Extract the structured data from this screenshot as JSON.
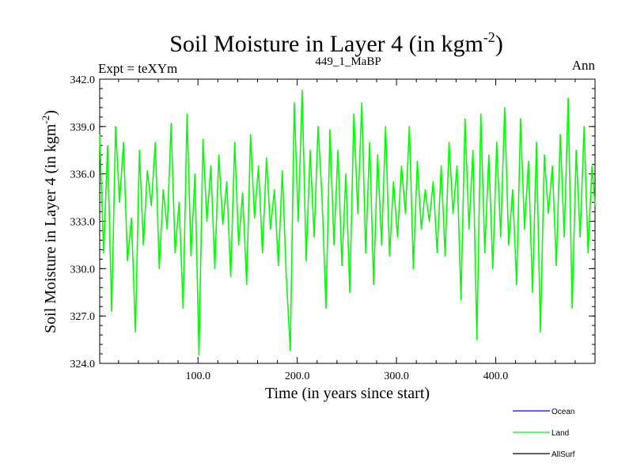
{
  "chart_data": {
    "type": "line",
    "title_main": "Soil Moisture in Layer 4 (in kgm",
    "title_sup": "-2",
    "title_close": ")",
    "left_label": "Expt = teXYm",
    "center_label": "449_1_MaBP",
    "right_label": "Ann",
    "xlabel": "Time (in years since start)",
    "ylabel_main": "Soil Moisture in Layer 4 (in kgm",
    "ylabel_sup": "-2",
    "ylabel_close": ")",
    "xlim": [
      1,
      500
    ],
    "ylim": [
      324.0,
      342.0
    ],
    "xticks": [
      100.0,
      200.0,
      300.0,
      400.0
    ],
    "xtick_labels": [
      "100.0",
      "200.0",
      "300.0",
      "400.0"
    ],
    "yticks": [
      324.0,
      327.0,
      330.0,
      333.0,
      336.0,
      339.0,
      342.0
    ],
    "ytick_labels": [
      "324.0",
      "327.0",
      "330.0",
      "333.0",
      "336.0",
      "339.0",
      "342.0"
    ],
    "legend_placement": "bottom-right, below plot",
    "legend": [
      {
        "name": "Ocean",
        "color": "#0000ff"
      },
      {
        "name": "Land",
        "color": "#00ff00"
      },
      {
        "name": "AllSurf",
        "color": "#000000"
      }
    ],
    "series": [
      {
        "name": "Land",
        "color": "#00ff00",
        "x": [
          1,
          5,
          9,
          13,
          17,
          21,
          25,
          29,
          33,
          37,
          41,
          45,
          49,
          53,
          57,
          61,
          65,
          69,
          73,
          77,
          81,
          85,
          89,
          93,
          97,
          101,
          105,
          109,
          113,
          117,
          121,
          125,
          129,
          133,
          137,
          141,
          145,
          149,
          153,
          157,
          161,
          165,
          169,
          173,
          177,
          181,
          185,
          189,
          193,
          197,
          201,
          205,
          209,
          213,
          217,
          221,
          225,
          229,
          233,
          237,
          241,
          245,
          249,
          253,
          257,
          261,
          265,
          269,
          273,
          277,
          281,
          285,
          289,
          293,
          297,
          301,
          305,
          309,
          313,
          317,
          321,
          325,
          329,
          333,
          337,
          341,
          345,
          349,
          353,
          357,
          361,
          365,
          369,
          373,
          377,
          381,
          385,
          389,
          393,
          397,
          401,
          405,
          409,
          413,
          417,
          421,
          425,
          429,
          433,
          437,
          441,
          445,
          449,
          453,
          457,
          461,
          465,
          469,
          473,
          477,
          481,
          485,
          489,
          493,
          497,
          500
        ],
        "values": [
          338.5,
          331.0,
          337.8,
          327.3,
          339.0,
          334.2,
          338.0,
          330.5,
          333.2,
          326.0,
          337.5,
          331.5,
          336.2,
          334.0,
          338.0,
          330.0,
          335.0,
          332.5,
          339.2,
          331.0,
          334.2,
          327.5,
          339.8,
          330.8,
          336.0,
          324.5,
          338.2,
          333.0,
          336.5,
          330.0,
          337.2,
          332.8,
          335.5,
          329.5,
          338.0,
          331.5,
          334.8,
          329.0,
          338.5,
          333.2,
          336.5,
          331.0,
          337.0,
          332.5,
          335.0,
          330.2,
          336.2,
          329.5,
          324.8,
          340.5,
          333.0,
          341.3,
          330.5,
          337.5,
          332.0,
          339.0,
          334.5,
          327.5,
          338.8,
          331.5,
          337.5,
          330.2,
          336.0,
          328.5,
          339.8,
          333.5,
          340.5,
          331.0,
          338.0,
          329.0,
          337.2,
          331.5,
          339.0,
          330.8,
          335.5,
          332.0,
          336.5,
          333.5,
          339.0,
          330.0,
          336.8,
          332.5,
          335.0,
          333.0,
          335.5,
          331.0,
          336.5,
          330.8,
          338.0,
          333.5,
          336.5,
          328.0,
          339.5,
          332.5,
          337.5,
          325.5,
          339.8,
          331.0,
          337.2,
          330.0,
          338.0,
          332.0,
          340.2,
          331.5,
          335.0,
          329.0,
          339.5,
          332.5,
          336.8,
          328.5,
          338.0,
          326.0,
          337.2,
          333.5,
          336.5,
          330.2,
          338.5,
          332.0,
          340.8,
          327.5,
          337.5,
          332.0,
          339.0,
          331.0,
          336.5,
          334.0
        ]
      }
    ]
  }
}
